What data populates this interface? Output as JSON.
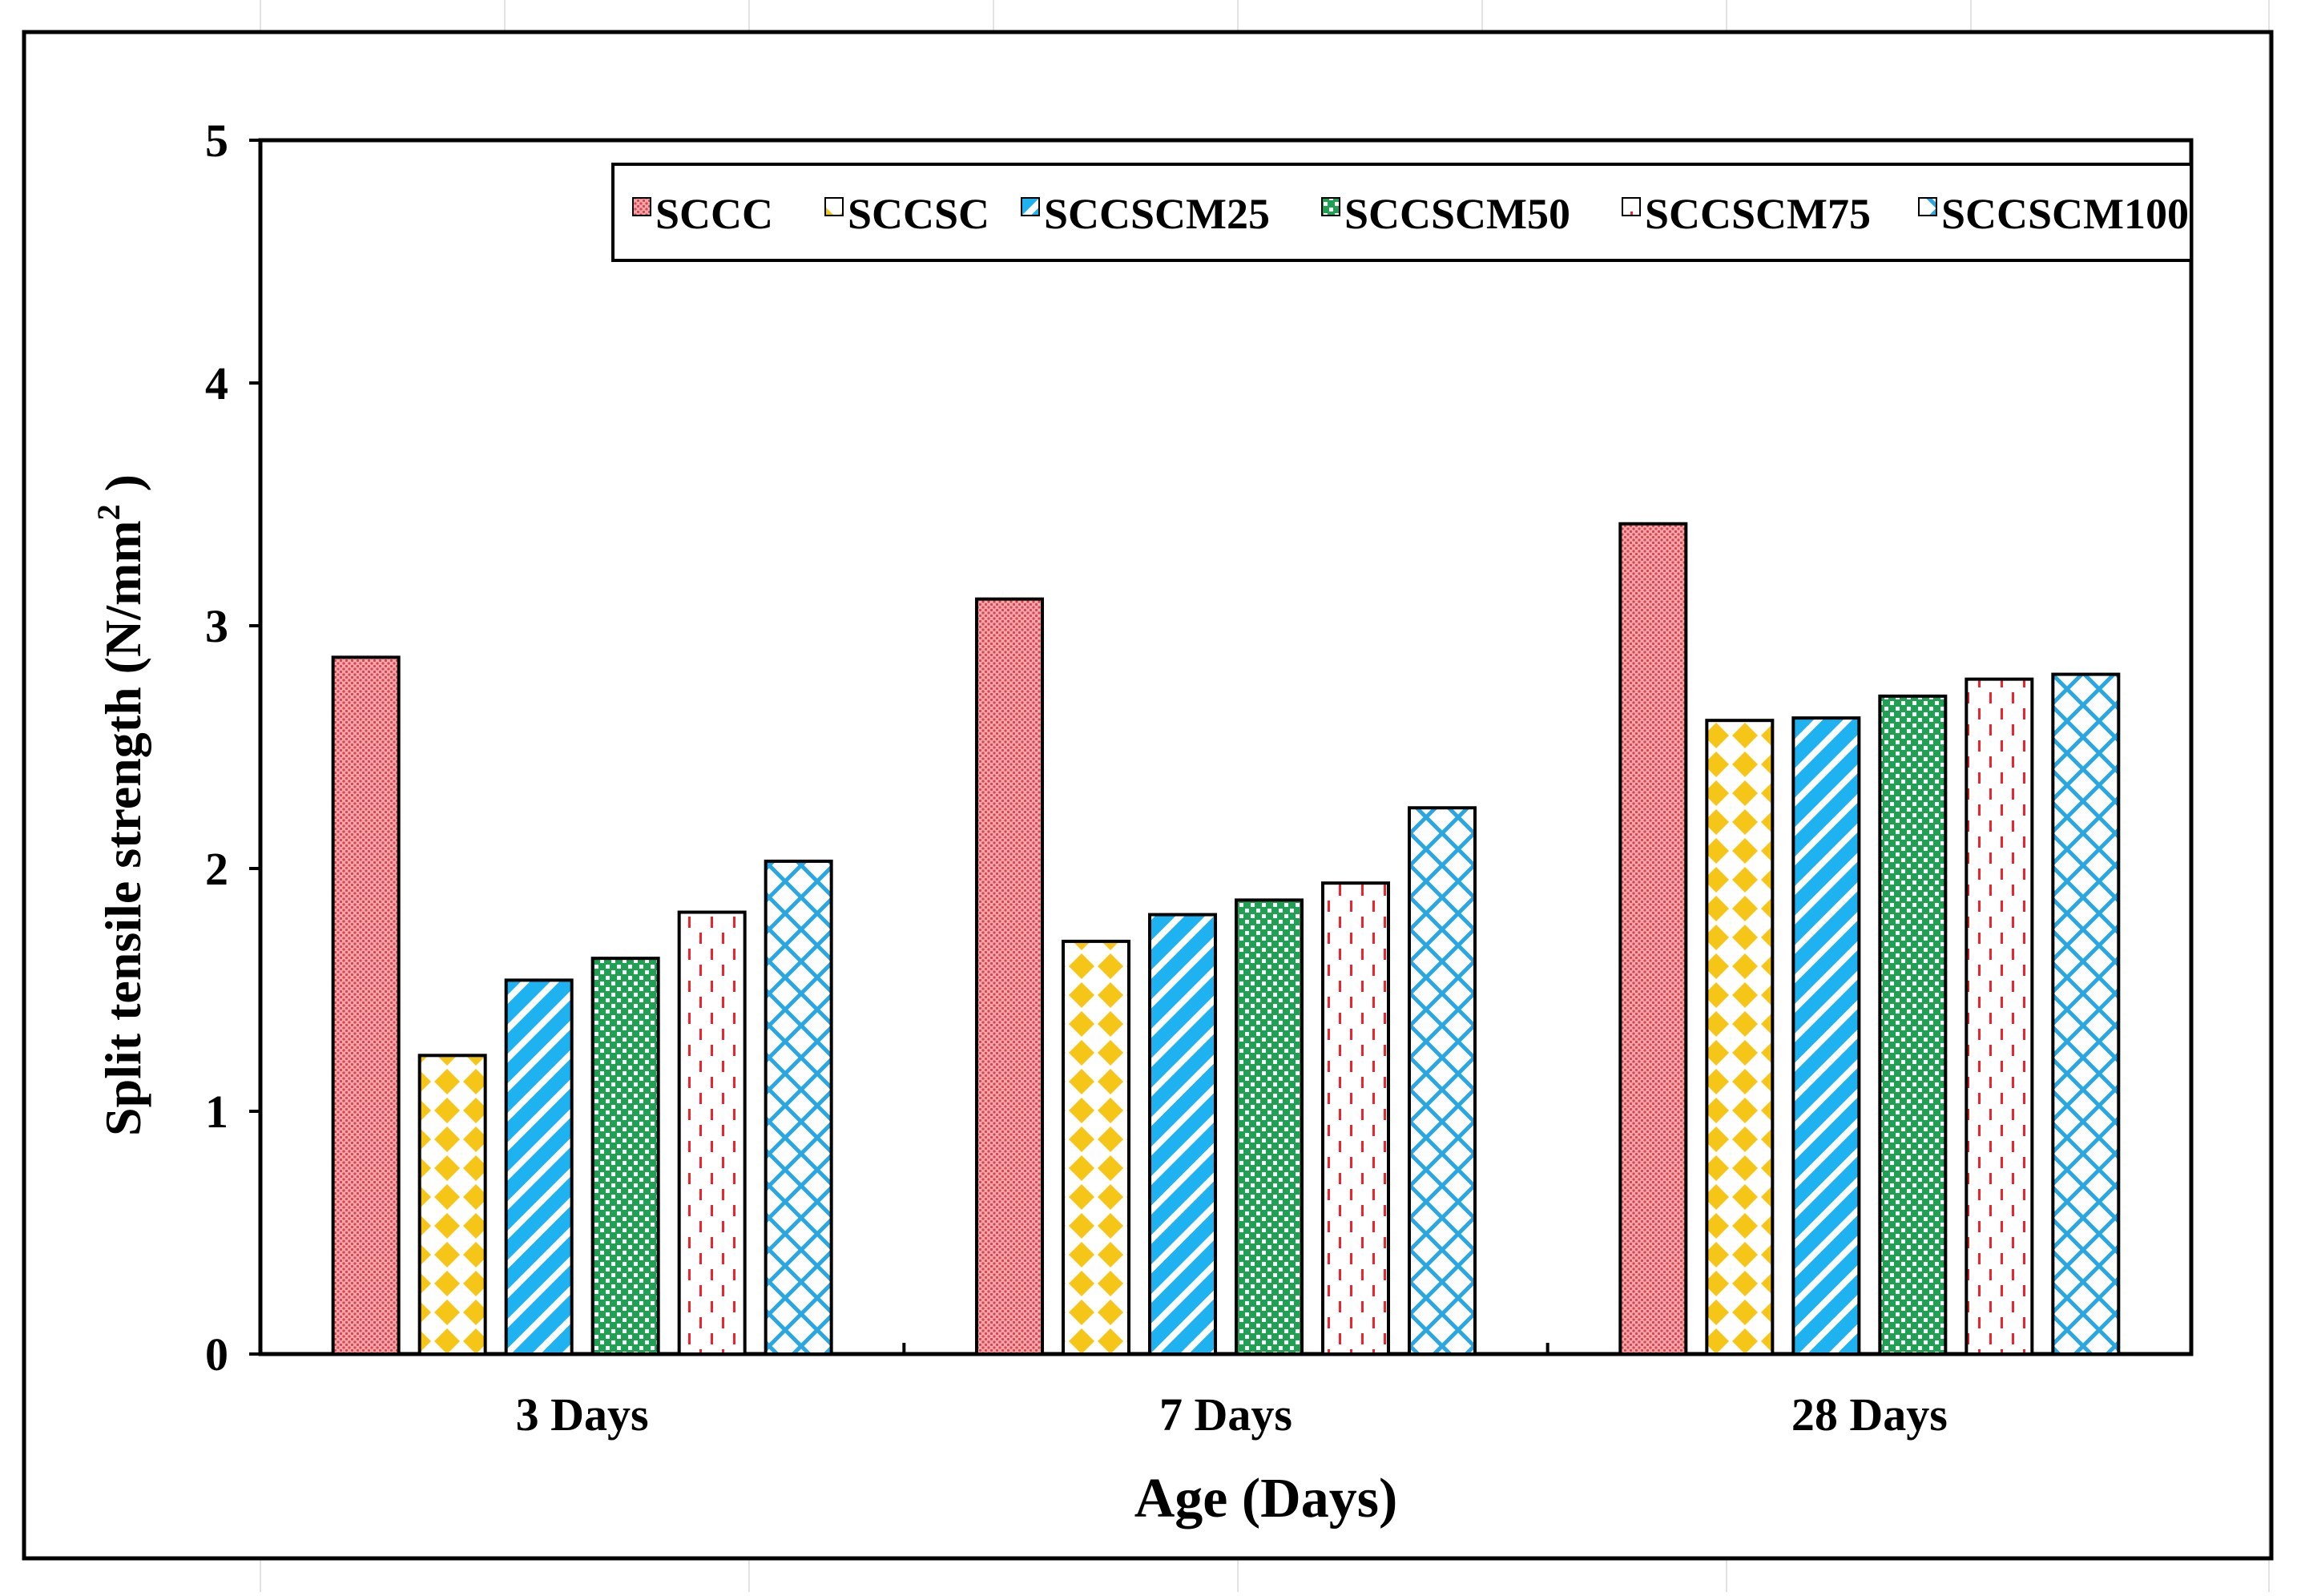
{
  "chart_data": {
    "type": "bar",
    "title": "",
    "xlabel": "Age (Days)",
    "ylabel": "Split tensile strength (N/mm",
    "ylabel_sup": "2",
    "ylabel_end": " )",
    "ylim": [
      0,
      5
    ],
    "yticks": [
      0,
      1,
      2,
      3,
      4,
      5
    ],
    "grid": false,
    "legend_position": "top-right",
    "categories": [
      "3 Days",
      "7 Days",
      "28 Days"
    ],
    "series": [
      {
        "name": "SCCC",
        "values": [
          2.87,
          3.11,
          3.42
        ],
        "pattern": "dots",
        "color": "#e8646e"
      },
      {
        "name": "SCCSC",
        "values": [
          1.23,
          1.7,
          2.61
        ],
        "pattern": "diamonds",
        "color": "#f5c518"
      },
      {
        "name": "SCCSCM25",
        "values": [
          1.54,
          1.81,
          2.62
        ],
        "pattern": "diagonal",
        "color": "#1eb3f0"
      },
      {
        "name": "SCCSCM50",
        "values": [
          1.63,
          1.87,
          2.71
        ],
        "pattern": "checker",
        "color": "#1fa052"
      },
      {
        "name": "SCCSCM75",
        "values": [
          1.82,
          1.94,
          2.78
        ],
        "pattern": "dashes",
        "color": "#f0222c"
      },
      {
        "name": "SCCSCM100",
        "values": [
          2.03,
          2.25,
          2.8
        ],
        "pattern": "crosshatch",
        "color": "#2aa6e0"
      }
    ]
  }
}
